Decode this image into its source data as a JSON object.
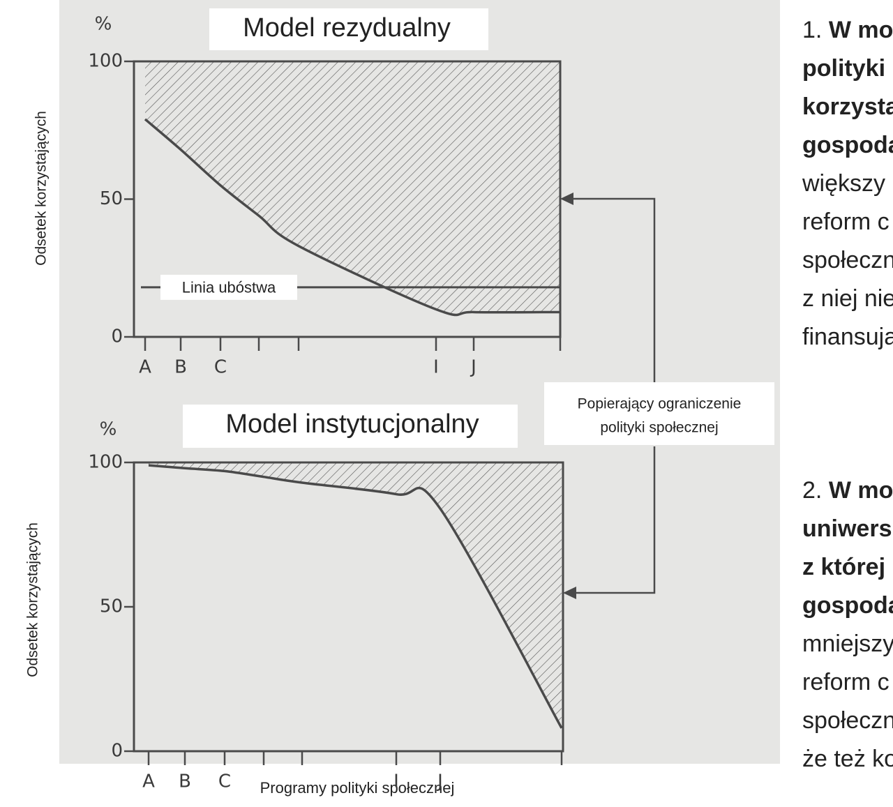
{
  "chart_data": [
    {
      "type": "area",
      "title": "Model rezydualny",
      "unit": "%",
      "ylabel": "Odsetek korzystających",
      "categories": [
        "A",
        "B",
        "C",
        null,
        null,
        "I",
        "J",
        null
      ],
      "values": [
        79,
        68,
        55,
        44,
        33,
        10,
        9,
        9
      ],
      "ylim": [
        0,
        100
      ],
      "yticks": [
        0,
        50,
        100
      ],
      "color": "#4a4a4a",
      "annotations": [
        {
          "text": "Linia ubóstwa",
          "value": 18
        }
      ]
    },
    {
      "type": "area",
      "title": "Model instytucjonalny",
      "unit": "%",
      "ylabel": "Odsetek korzystających",
      "categories": [
        "A",
        "B",
        "C",
        null,
        null,
        "I",
        "J",
        null
      ],
      "values": [
        99,
        98,
        97,
        95,
        93,
        89,
        84,
        8
      ],
      "ylim": [
        0,
        100
      ],
      "yticks": [
        0,
        50,
        100
      ],
      "color": "#4a4a4a"
    }
  ],
  "x_axis_label": "Programy polityki społecznej",
  "arrow_label": [
    "Popierający ograniczenie",
    "polityki społecznej"
  ],
  "right_text": {
    "paragraphs": [
      {
        "lines": [
          [
            {
              "text": "1. ",
              "bold": false
            },
            {
              "text": "W mo",
              "bold": true
            }
          ],
          [
            {
              "text": "polityki",
              "bold": true
            }
          ],
          [
            {
              "text": "korzysta",
              "bold": true
            }
          ],
          [
            {
              "text": "gospoda",
              "bold": true
            }
          ],
          [
            {
              "text": "większy",
              "bold": false
            }
          ],
          [
            {
              "text": "reform c",
              "bold": false
            }
          ],
          [
            {
              "text": "społeczn",
              "bold": false
            }
          ],
          [
            {
              "text": "z niej nie",
              "bold": false
            }
          ],
          [
            {
              "text": "finansuja",
              "bold": false
            }
          ]
        ]
      },
      {
        "lines": [
          [
            {
              "text": "2. ",
              "bold": false
            },
            {
              "text": "W mo",
              "bold": true
            }
          ],
          [
            {
              "text": "uniwers",
              "bold": true
            }
          ],
          [
            {
              "text": "z której",
              "bold": true
            }
          ],
          [
            {
              "text": "gospoda",
              "bold": true
            }
          ],
          [
            {
              "text": "mniejszy",
              "bold": false
            }
          ],
          [
            {
              "text": "reform c",
              "bold": false
            }
          ],
          [
            {
              "text": "społeczn",
              "bold": false
            }
          ],
          [
            {
              "text": "że też ko",
              "bold": false
            }
          ]
        ]
      }
    ]
  }
}
